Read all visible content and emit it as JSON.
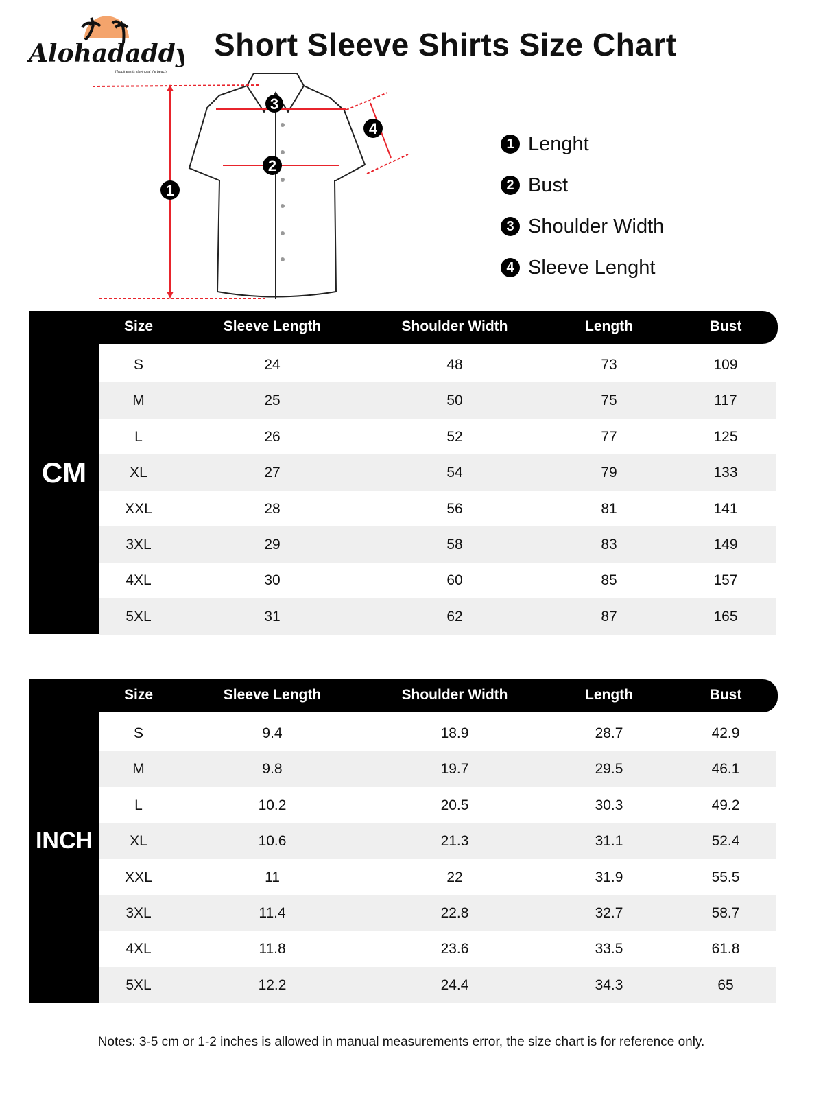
{
  "brand": {
    "name": "Alohadaddy",
    "tagline": "Happiness is staying at the beach",
    "accent": "#f4a46c"
  },
  "title": "Short Sleeve Shirts Size Chart",
  "measure_color": "#e8242c",
  "legend": [
    {
      "num": "1",
      "label": "Lenght"
    },
    {
      "num": "2",
      "label": "Bust"
    },
    {
      "num": "3",
      "label": "Shoulder Width"
    },
    {
      "num": "4",
      "label": "Sleeve Lenght"
    }
  ],
  "columns": [
    "Size",
    "Sleeve Length",
    "Shoulder Width",
    "Length",
    "Bust"
  ],
  "tables": [
    {
      "unit": "CM",
      "rows": [
        [
          "S",
          "24",
          "48",
          "73",
          "109"
        ],
        [
          "M",
          "25",
          "50",
          "75",
          "117"
        ],
        [
          "L",
          "26",
          "52",
          "77",
          "125"
        ],
        [
          "XL",
          "27",
          "54",
          "79",
          "133"
        ],
        [
          "XXL",
          "28",
          "56",
          "81",
          "141"
        ],
        [
          "3XL",
          "29",
          "58",
          "83",
          "149"
        ],
        [
          "4XL",
          "30",
          "60",
          "85",
          "157"
        ],
        [
          "5XL",
          "31",
          "62",
          "87",
          "165"
        ]
      ]
    },
    {
      "unit": "INCH",
      "rows": [
        [
          "S",
          "9.4",
          "18.9",
          "28.7",
          "42.9"
        ],
        [
          "M",
          "9.8",
          "19.7",
          "29.5",
          "46.1"
        ],
        [
          "L",
          "10.2",
          "20.5",
          "30.3",
          "49.2"
        ],
        [
          "XL",
          "10.6",
          "21.3",
          "31.1",
          "52.4"
        ],
        [
          "XXL",
          "11",
          "22",
          "31.9",
          "55.5"
        ],
        [
          "3XL",
          "11.4",
          "22.8",
          "32.7",
          "58.7"
        ],
        [
          "4XL",
          "11.8",
          "23.6",
          "33.5",
          "61.8"
        ],
        [
          "5XL",
          "12.2",
          "24.4",
          "34.3",
          "65"
        ]
      ]
    }
  ],
  "notes": "Notes: 3-5 cm or 1-2 inches is allowed in manual measurements error, the size chart is for reference only."
}
